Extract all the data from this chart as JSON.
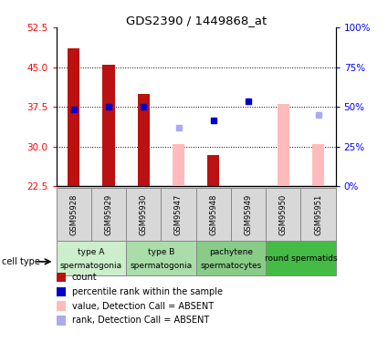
{
  "title": "GDS2390 / 1449868_at",
  "samples": [
    "GSM95928",
    "GSM95929",
    "GSM95930",
    "GSM95947",
    "GSM95948",
    "GSM95949",
    "GSM95950",
    "GSM95951"
  ],
  "ylim_left": [
    22.5,
    52.5
  ],
  "ylim_right": [
    0,
    100
  ],
  "yticks_left": [
    22.5,
    30,
    37.5,
    45,
    52.5
  ],
  "yticks_right": [
    0,
    25,
    50,
    75,
    100
  ],
  "ytick_labels_right": [
    "0%",
    "25%",
    "50%",
    "75%",
    "100%"
  ],
  "red_bars": [
    48.5,
    45.5,
    40.0,
    null,
    28.5,
    null,
    null,
    null
  ],
  "pink_bars": [
    null,
    null,
    null,
    30.5,
    null,
    null,
    38.0,
    30.5
  ],
  "blue_squares": [
    37.0,
    37.5,
    37.5,
    null,
    35.0,
    38.5,
    null,
    null
  ],
  "lightblue_squares": [
    null,
    null,
    null,
    33.5,
    null,
    null,
    null,
    36.0
  ],
  "cell_groups": [
    {
      "label": "type A\nspermatogonia",
      "span": [
        0,
        2
      ],
      "color": "#cceecc"
    },
    {
      "label": "type B\nspermatogonia",
      "span": [
        2,
        4
      ],
      "color": "#aaddaa"
    },
    {
      "label": "pachytene\nspermatocytes",
      "span": [
        4,
        6
      ],
      "color": "#88cc88"
    },
    {
      "label": "round spermatids",
      "span": [
        6,
        8
      ],
      "color": "#44bb44"
    }
  ],
  "bar_width": 0.35,
  "red_color": "#bb1111",
  "pink_color": "#ffbbbb",
  "blue_color": "#0000cc",
  "lightblue_color": "#aaaaee",
  "legend_items": [
    {
      "color": "#bb1111",
      "label": "count"
    },
    {
      "color": "#0000cc",
      "label": "percentile rank within the sample"
    },
    {
      "color": "#ffbbbb",
      "label": "value, Detection Call = ABSENT"
    },
    {
      "color": "#aaaaee",
      "label": "rank, Detection Call = ABSENT"
    }
  ]
}
